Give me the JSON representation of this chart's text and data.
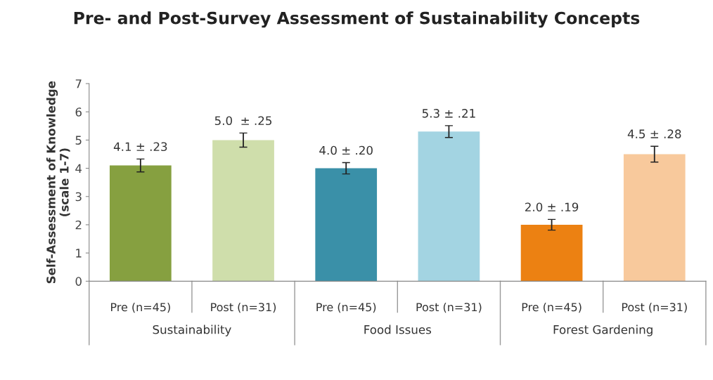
{
  "chart_data": {
    "type": "bar",
    "title": "Pre- and Post-Survey Assessment of Sustainability Concepts",
    "ylabel": "Self-Assessment of Knowledge\n(scale 1-7)",
    "categories": [
      "Pre (n=45)",
      "Post (n=31)",
      "Pre (n=45)",
      "Post (n=31)",
      "Pre (n=45)",
      "Post (n=31)"
    ],
    "values": [
      4.1,
      5.0,
      4.0,
      5.3,
      2.0,
      4.5
    ],
    "errors": [
      0.23,
      0.25,
      0.2,
      0.21,
      0.19,
      0.28
    ],
    "value_labels": [
      "4.1 ± .23",
      "5.0  ± .25",
      "4.0 ± .20",
      "5.3 ± .21",
      "2.0 ± .19",
      "4.5 ± .28"
    ],
    "colors": [
      "#86a040",
      "#cfdeab",
      "#3a90a8",
      "#a3d4e2",
      "#ec8112",
      "#f8c99c"
    ],
    "annotations": [
      "Sustainability",
      "Food Issues",
      "Forest Gardening"
    ],
    "ylim": [
      0,
      7
    ],
    "yticks": [
      0,
      1,
      2,
      3,
      4,
      5,
      6,
      7
    ],
    "grid": false
  }
}
